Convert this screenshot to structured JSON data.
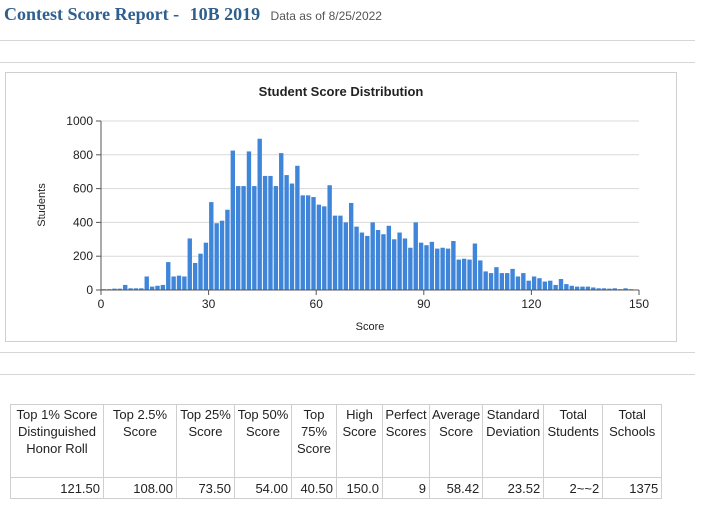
{
  "header": {
    "title": "Contest Score Report -",
    "contest": "10B 2019",
    "as_of": "Data as of 8/25/2022"
  },
  "chart_data": {
    "type": "bar",
    "title": "Student Score Distribution",
    "xlabel": "Score",
    "ylabel": "Students",
    "xlim": [
      0,
      150
    ],
    "ylim": [
      0,
      1000
    ],
    "x_ticks": [
      0,
      30,
      60,
      90,
      120,
      150
    ],
    "y_ticks": [
      0,
      200,
      400,
      600,
      800,
      1000
    ],
    "grid": true,
    "color": "#3f85d9",
    "bin_width": 1.5,
    "x": [
      0,
      1.5,
      3,
      4.5,
      6,
      7.5,
      9,
      10.5,
      12,
      13.5,
      15,
      16.5,
      18,
      19.5,
      21,
      22.5,
      24,
      25.5,
      27,
      28.5,
      30,
      31.5,
      33,
      34.5,
      36,
      37.5,
      39,
      40.5,
      42,
      43.5,
      45,
      46.5,
      48,
      49.5,
      51,
      52.5,
      54,
      55.5,
      57,
      58.5,
      60,
      61.5,
      63,
      64.5,
      66,
      67.5,
      69,
      70.5,
      72,
      73.5,
      75,
      76.5,
      78,
      79.5,
      81,
      82.5,
      84,
      85.5,
      87,
      88.5,
      90,
      91.5,
      93,
      94.5,
      96,
      97.5,
      99,
      100.5,
      102,
      103.5,
      105,
      106.5,
      108,
      109.5,
      111,
      112.5,
      114,
      115.5,
      117,
      118.5,
      120,
      121.5,
      123,
      124.5,
      126,
      127.5,
      129,
      130.5,
      132,
      133.5,
      135,
      136.5,
      138,
      139.5,
      141,
      142.5,
      144,
      145.5,
      147,
      148.5
    ],
    "values": [
      5,
      5,
      8,
      8,
      30,
      10,
      10,
      10,
      80,
      20,
      25,
      30,
      165,
      80,
      85,
      80,
      305,
      160,
      215,
      280,
      520,
      395,
      410,
      475,
      825,
      615,
      615,
      820,
      615,
      895,
      675,
      675,
      615,
      810,
      680,
      630,
      735,
      560,
      560,
      550,
      505,
      495,
      620,
      440,
      440,
      400,
      515,
      375,
      340,
      320,
      400,
      355,
      330,
      380,
      300,
      340,
      305,
      250,
      400,
      280,
      265,
      285,
      245,
      250,
      245,
      290,
      180,
      185,
      180,
      275,
      175,
      110,
      100,
      135,
      100,
      100,
      125,
      80,
      100,
      55,
      80,
      70,
      50,
      55,
      30,
      65,
      35,
      25,
      20,
      20,
      20,
      15,
      10,
      10,
      8,
      10,
      5,
      10,
      5,
      3
    ]
  },
  "stats": {
    "headers": [
      "Top 1% Score Distinguished Honor Roll",
      "Top 2.5% Score",
      "Top 25% Score",
      "Top 50% Score",
      "Top 75% Score",
      "High Score",
      "Perfect Scores",
      "Average Score",
      "Standard Deviation",
      "Total Students",
      "Total Schools"
    ],
    "values": [
      "121.50",
      "108.00",
      "73.50",
      "54.00",
      "40.50",
      "150.0",
      "9",
      "58.42",
      "23.52",
      "2~~2",
      "1375"
    ]
  }
}
